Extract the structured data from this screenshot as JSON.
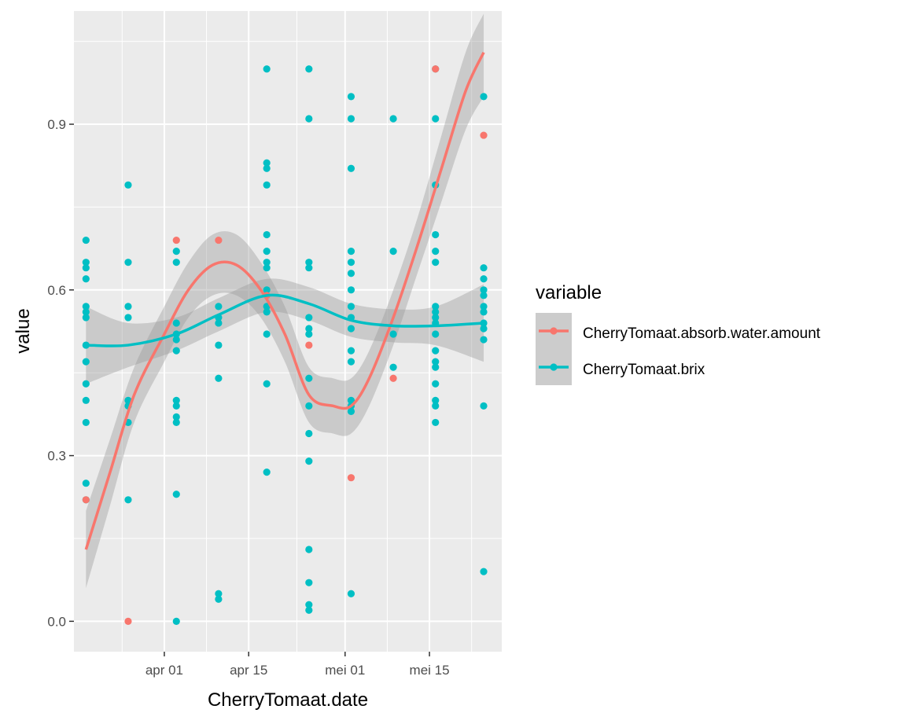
{
  "chart_data": {
    "type": "scatter",
    "title": "",
    "xlabel": "CherryTomaat.date",
    "ylabel": "value",
    "x_axis_type": "date",
    "xlim": [
      "2025-03-17",
      "2025-05-27"
    ],
    "ylim": [
      -0.055,
      1.105
    ],
    "x_ticks": [
      {
        "date": "2025-04-01",
        "label": "apr 01"
      },
      {
        "date": "2025-04-15",
        "label": "apr 15"
      },
      {
        "date": "2025-05-01",
        "label": "mei 01"
      },
      {
        "date": "2025-05-15",
        "label": "mei 15"
      }
    ],
    "y_ticks": [
      {
        "value": 0.0,
        "label": "0.0"
      },
      {
        "value": 0.3,
        "label": "0.3"
      },
      {
        "value": 0.6,
        "label": "0.6"
      },
      {
        "value": 0.9,
        "label": "0.9"
      }
    ],
    "grid": true,
    "background": "#ebebeb",
    "legend": {
      "title": "variable",
      "position": "right"
    },
    "series": [
      {
        "name": "CherryTomaat.absorb.water.amount",
        "color": "#f8766d",
        "points": [
          {
            "x": "2025-03-19",
            "y": 0.22
          },
          {
            "x": "2025-03-26",
            "y": 0.0
          },
          {
            "x": "2025-04-03",
            "y": 0.69
          },
          {
            "x": "2025-04-10",
            "y": 0.69
          },
          {
            "x": "2025-04-18",
            "y": 0.59
          },
          {
            "x": "2025-04-25",
            "y": 0.5
          },
          {
            "x": "2025-05-02",
            "y": 0.26
          },
          {
            "x": "2025-05-09",
            "y": 0.44
          },
          {
            "x": "2025-05-16",
            "y": 1.0
          },
          {
            "x": "2025-05-24",
            "y": 0.88
          }
        ],
        "smooth": [
          {
            "x": "2025-03-19",
            "y": 0.13,
            "lo": 0.06,
            "hi": 0.2
          },
          {
            "x": "2025-03-23",
            "y": 0.27,
            "lo": 0.21,
            "hi": 0.33
          },
          {
            "x": "2025-03-27",
            "y": 0.41,
            "lo": 0.36,
            "hi": 0.46
          },
          {
            "x": "2025-04-01",
            "y": 0.52,
            "lo": 0.47,
            "hi": 0.57
          },
          {
            "x": "2025-04-05",
            "y": 0.6,
            "lo": 0.55,
            "hi": 0.65
          },
          {
            "x": "2025-04-09",
            "y": 0.645,
            "lo": 0.59,
            "hi": 0.7
          },
          {
            "x": "2025-04-13",
            "y": 0.645,
            "lo": 0.59,
            "hi": 0.7
          },
          {
            "x": "2025-04-17",
            "y": 0.6,
            "lo": 0.55,
            "hi": 0.65
          },
          {
            "x": "2025-04-21",
            "y": 0.52,
            "lo": 0.47,
            "hi": 0.57
          },
          {
            "x": "2025-04-25",
            "y": 0.41,
            "lo": 0.36,
            "hi": 0.46
          },
          {
            "x": "2025-04-29",
            "y": 0.39,
            "lo": 0.34,
            "hi": 0.44
          },
          {
            "x": "2025-05-02",
            "y": 0.39,
            "lo": 0.34,
            "hi": 0.44
          },
          {
            "x": "2025-05-05",
            "y": 0.44,
            "lo": 0.39,
            "hi": 0.49
          },
          {
            "x": "2025-05-09",
            "y": 0.55,
            "lo": 0.5,
            "hi": 0.6
          },
          {
            "x": "2025-05-13",
            "y": 0.68,
            "lo": 0.63,
            "hi": 0.73
          },
          {
            "x": "2025-05-17",
            "y": 0.82,
            "lo": 0.76,
            "hi": 0.88
          },
          {
            "x": "2025-05-21",
            "y": 0.96,
            "lo": 0.89,
            "hi": 1.03
          },
          {
            "x": "2025-05-24",
            "y": 1.03,
            "lo": 0.95,
            "hi": 1.1
          }
        ]
      },
      {
        "name": "CherryTomaat.brix",
        "color": "#00bfc4",
        "points": [
          {
            "x": "2025-03-19",
            "y": 0.69
          },
          {
            "x": "2025-03-19",
            "y": 0.65
          },
          {
            "x": "2025-03-19",
            "y": 0.64
          },
          {
            "x": "2025-03-19",
            "y": 0.62
          },
          {
            "x": "2025-03-19",
            "y": 0.57
          },
          {
            "x": "2025-03-19",
            "y": 0.56
          },
          {
            "x": "2025-03-19",
            "y": 0.55
          },
          {
            "x": "2025-03-19",
            "y": 0.5
          },
          {
            "x": "2025-03-19",
            "y": 0.47
          },
          {
            "x": "2025-03-19",
            "y": 0.43
          },
          {
            "x": "2025-03-19",
            "y": 0.4
          },
          {
            "x": "2025-03-19",
            "y": 0.36
          },
          {
            "x": "2025-03-19",
            "y": 0.25
          },
          {
            "x": "2025-03-19",
            "y": 0.22
          },
          {
            "x": "2025-03-26",
            "y": 0.79
          },
          {
            "x": "2025-03-26",
            "y": 0.65
          },
          {
            "x": "2025-03-26",
            "y": 0.57
          },
          {
            "x": "2025-03-26",
            "y": 0.55
          },
          {
            "x": "2025-03-26",
            "y": 0.4
          },
          {
            "x": "2025-03-26",
            "y": 0.39
          },
          {
            "x": "2025-03-26",
            "y": 0.36
          },
          {
            "x": "2025-03-26",
            "y": 0.22
          },
          {
            "x": "2025-04-03",
            "y": 0.67
          },
          {
            "x": "2025-04-03",
            "y": 0.65
          },
          {
            "x": "2025-04-03",
            "y": 0.54
          },
          {
            "x": "2025-04-03",
            "y": 0.52
          },
          {
            "x": "2025-04-03",
            "y": 0.51
          },
          {
            "x": "2025-04-03",
            "y": 0.49
          },
          {
            "x": "2025-04-03",
            "y": 0.4
          },
          {
            "x": "2025-04-03",
            "y": 0.39
          },
          {
            "x": "2025-04-03",
            "y": 0.37
          },
          {
            "x": "2025-04-03",
            "y": 0.36
          },
          {
            "x": "2025-04-03",
            "y": 0.23
          },
          {
            "x": "2025-04-03",
            "y": 0.0
          },
          {
            "x": "2025-04-10",
            "y": 0.57
          },
          {
            "x": "2025-04-10",
            "y": 0.55
          },
          {
            "x": "2025-04-10",
            "y": 0.54
          },
          {
            "x": "2025-04-10",
            "y": 0.5
          },
          {
            "x": "2025-04-10",
            "y": 0.44
          },
          {
            "x": "2025-04-10",
            "y": 0.05
          },
          {
            "x": "2025-04-10",
            "y": 0.04
          },
          {
            "x": "2025-04-18",
            "y": 1.0
          },
          {
            "x": "2025-04-18",
            "y": 0.83
          },
          {
            "x": "2025-04-18",
            "y": 0.82
          },
          {
            "x": "2025-04-18",
            "y": 0.79
          },
          {
            "x": "2025-04-18",
            "y": 0.7
          },
          {
            "x": "2025-04-18",
            "y": 0.67
          },
          {
            "x": "2025-04-18",
            "y": 0.65
          },
          {
            "x": "2025-04-18",
            "y": 0.64
          },
          {
            "x": "2025-04-18",
            "y": 0.6
          },
          {
            "x": "2025-04-18",
            "y": 0.57
          },
          {
            "x": "2025-04-18",
            "y": 0.56
          },
          {
            "x": "2025-04-18",
            "y": 0.52
          },
          {
            "x": "2025-04-18",
            "y": 0.43
          },
          {
            "x": "2025-04-18",
            "y": 0.27
          },
          {
            "x": "2025-04-25",
            "y": 1.0
          },
          {
            "x": "2025-04-25",
            "y": 0.91
          },
          {
            "x": "2025-04-25",
            "y": 0.65
          },
          {
            "x": "2025-04-25",
            "y": 0.64
          },
          {
            "x": "2025-04-25",
            "y": 0.55
          },
          {
            "x": "2025-04-25",
            "y": 0.53
          },
          {
            "x": "2025-04-25",
            "y": 0.52
          },
          {
            "x": "2025-04-25",
            "y": 0.44
          },
          {
            "x": "2025-04-25",
            "y": 0.39
          },
          {
            "x": "2025-04-25",
            "y": 0.34
          },
          {
            "x": "2025-04-25",
            "y": 0.29
          },
          {
            "x": "2025-04-25",
            "y": 0.13
          },
          {
            "x": "2025-04-25",
            "y": 0.07
          },
          {
            "x": "2025-04-25",
            "y": 0.03
          },
          {
            "x": "2025-04-25",
            "y": 0.02
          },
          {
            "x": "2025-05-02",
            "y": 0.95
          },
          {
            "x": "2025-05-02",
            "y": 0.91
          },
          {
            "x": "2025-05-02",
            "y": 0.82
          },
          {
            "x": "2025-05-02",
            "y": 0.67
          },
          {
            "x": "2025-05-02",
            "y": 0.65
          },
          {
            "x": "2025-05-02",
            "y": 0.63
          },
          {
            "x": "2025-05-02",
            "y": 0.6
          },
          {
            "x": "2025-05-02",
            "y": 0.57
          },
          {
            "x": "2025-05-02",
            "y": 0.55
          },
          {
            "x": "2025-05-02",
            "y": 0.53
          },
          {
            "x": "2025-05-02",
            "y": 0.49
          },
          {
            "x": "2025-05-02",
            "y": 0.47
          },
          {
            "x": "2025-05-02",
            "y": 0.4
          },
          {
            "x": "2025-05-02",
            "y": 0.39
          },
          {
            "x": "2025-05-02",
            "y": 0.38
          },
          {
            "x": "2025-05-02",
            "y": 0.05
          },
          {
            "x": "2025-05-09",
            "y": 0.91
          },
          {
            "x": "2025-05-09",
            "y": 0.67
          },
          {
            "x": "2025-05-09",
            "y": 0.52
          },
          {
            "x": "2025-05-09",
            "y": 0.46
          },
          {
            "x": "2025-05-16",
            "y": 1.0
          },
          {
            "x": "2025-05-16",
            "y": 0.91
          },
          {
            "x": "2025-05-16",
            "y": 0.79
          },
          {
            "x": "2025-05-16",
            "y": 0.7
          },
          {
            "x": "2025-05-16",
            "y": 0.67
          },
          {
            "x": "2025-05-16",
            "y": 0.65
          },
          {
            "x": "2025-05-16",
            "y": 0.57
          },
          {
            "x": "2025-05-16",
            "y": 0.56
          },
          {
            "x": "2025-05-16",
            "y": 0.55
          },
          {
            "x": "2025-05-16",
            "y": 0.54
          },
          {
            "x": "2025-05-16",
            "y": 0.52
          },
          {
            "x": "2025-05-16",
            "y": 0.49
          },
          {
            "x": "2025-05-16",
            "y": 0.47
          },
          {
            "x": "2025-05-16",
            "y": 0.46
          },
          {
            "x": "2025-05-16",
            "y": 0.43
          },
          {
            "x": "2025-05-16",
            "y": 0.4
          },
          {
            "x": "2025-05-16",
            "y": 0.39
          },
          {
            "x": "2025-05-16",
            "y": 0.36
          },
          {
            "x": "2025-05-24",
            "y": 0.95
          },
          {
            "x": "2025-05-24",
            "y": 0.64
          },
          {
            "x": "2025-05-24",
            "y": 0.62
          },
          {
            "x": "2025-05-24",
            "y": 0.6
          },
          {
            "x": "2025-05-24",
            "y": 0.59
          },
          {
            "x": "2025-05-24",
            "y": 0.57
          },
          {
            "x": "2025-05-24",
            "y": 0.56
          },
          {
            "x": "2025-05-24",
            "y": 0.54
          },
          {
            "x": "2025-05-24",
            "y": 0.53
          },
          {
            "x": "2025-05-24",
            "y": 0.51
          },
          {
            "x": "2025-05-24",
            "y": 0.39
          },
          {
            "x": "2025-05-24",
            "y": 0.09
          }
        ],
        "smooth": [
          {
            "x": "2025-03-19",
            "y": 0.5,
            "lo": 0.43,
            "hi": 0.57
          },
          {
            "x": "2025-03-26",
            "y": 0.5,
            "lo": 0.46,
            "hi": 0.54
          },
          {
            "x": "2025-04-03",
            "y": 0.52,
            "lo": 0.49,
            "hi": 0.55
          },
          {
            "x": "2025-04-10",
            "y": 0.555,
            "lo": 0.525,
            "hi": 0.585
          },
          {
            "x": "2025-04-18",
            "y": 0.59,
            "lo": 0.56,
            "hi": 0.62
          },
          {
            "x": "2025-04-25",
            "y": 0.575,
            "lo": 0.545,
            "hi": 0.605
          },
          {
            "x": "2025-05-02",
            "y": 0.545,
            "lo": 0.515,
            "hi": 0.575
          },
          {
            "x": "2025-05-09",
            "y": 0.535,
            "lo": 0.505,
            "hi": 0.565
          },
          {
            "x": "2025-05-16",
            "y": 0.535,
            "lo": 0.5,
            "hi": 0.57
          },
          {
            "x": "2025-05-24",
            "y": 0.54,
            "lo": 0.47,
            "hi": 0.61
          }
        ]
      }
    ]
  }
}
